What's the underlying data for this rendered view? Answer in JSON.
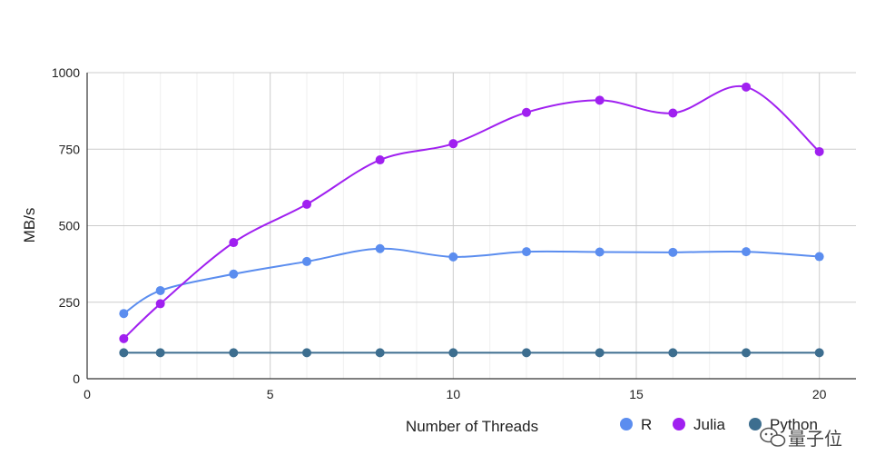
{
  "chart_data": {
    "type": "line",
    "title": "",
    "xlabel": "Number of Threads",
    "ylabel": "MB/s",
    "xlim": [
      0,
      21
    ],
    "ylim": [
      0,
      1000
    ],
    "xticks": [
      0,
      5,
      10,
      15,
      20
    ],
    "yticks": [
      0,
      250,
      500,
      750,
      1000
    ],
    "grid": true,
    "legend_position": "bottom-right",
    "x": [
      1,
      2,
      4,
      6,
      8,
      10,
      12,
      14,
      16,
      18,
      20
    ],
    "series": [
      {
        "name": "R",
        "color": "#5b8def",
        "values": [
          213,
          288,
          342,
          383,
          425,
          398,
          415,
          414,
          413,
          415,
          399
        ]
      },
      {
        "name": "Julia",
        "color": "#a020f0",
        "values": [
          131,
          245,
          445,
          570,
          715,
          768,
          870,
          910,
          868,
          953,
          742
        ]
      },
      {
        "name": "Python",
        "color": "#3d6e8f",
        "values": [
          85,
          85,
          85,
          85,
          85,
          85,
          85,
          85,
          85,
          85,
          85
        ]
      }
    ]
  },
  "watermark": {
    "text": "量子位",
    "icon": "wechat-icon"
  }
}
